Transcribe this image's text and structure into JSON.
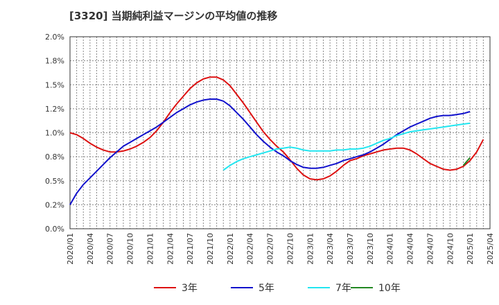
{
  "chart_data": {
    "type": "line",
    "title": "[3320]  当期純利益マージンの平均値の推移",
    "ylim": [
      0.0,
      0.02
    ],
    "yticks": [
      "2.0%",
      "1.8%",
      "1.5%",
      "1.2%",
      "1.0%",
      "0.8%",
      "0.5%",
      "0.2%",
      "0.0%"
    ],
    "x_start": "2020-01",
    "x_end": "2025-04",
    "xticks": [
      "2020/01",
      "2020/04",
      "2020/07",
      "2020/10",
      "2021/01",
      "2021/04",
      "2021/07",
      "2021/10",
      "2022/01",
      "2022/04",
      "2022/07",
      "2022/10",
      "2023/01",
      "2023/04",
      "2023/07",
      "2023/10",
      "2024/01",
      "2024/04",
      "2024/07",
      "2024/10",
      "2025/01",
      "2025/04"
    ],
    "grid": true,
    "legend_position": "bottom",
    "series": [
      {
        "name": "3年",
        "color": "#dd1111",
        "start": "2020-01",
        "values": [
          0.01,
          0.0098,
          0.0094,
          0.0089,
          0.0085,
          0.0082,
          0.008,
          0.008,
          0.0081,
          0.0083,
          0.0086,
          0.009,
          0.0095,
          0.0102,
          0.0111,
          0.0121,
          0.013,
          0.0138,
          0.0146,
          0.0152,
          0.0156,
          0.0158,
          0.0158,
          0.0155,
          0.0149,
          0.014,
          0.0131,
          0.0121,
          0.0111,
          0.0101,
          0.0093,
          0.0086,
          0.008,
          0.0072,
          0.0063,
          0.0056,
          0.0052,
          0.0051,
          0.0052,
          0.0055,
          0.006,
          0.0066,
          0.0071,
          0.0073,
          0.0076,
          0.0078,
          0.008,
          0.0082,
          0.0083,
          0.0084,
          0.0084,
          0.0082,
          0.0078,
          0.0073,
          0.0068,
          0.0065,
          0.0062,
          0.0061,
          0.0062,
          0.0065,
          0.0071,
          0.008,
          0.0093
        ]
      },
      {
        "name": "5年",
        "color": "#1111cc",
        "start": "2020-01",
        "values": [
          0.0025,
          0.0037,
          0.0046,
          0.0053,
          0.006,
          0.0067,
          0.0074,
          0.008,
          0.0086,
          0.009,
          0.0094,
          0.0098,
          0.0102,
          0.0106,
          0.0111,
          0.0116,
          0.0121,
          0.0125,
          0.0129,
          0.0132,
          0.0134,
          0.0135,
          0.0135,
          0.0133,
          0.0128,
          0.0121,
          0.0114,
          0.0106,
          0.0098,
          0.0091,
          0.0085,
          0.008,
          0.0076,
          0.0071,
          0.0067,
          0.0064,
          0.0063,
          0.0063,
          0.0064,
          0.0066,
          0.0068,
          0.0071,
          0.0073,
          0.0075,
          0.0077,
          0.008,
          0.0084,
          0.0088,
          0.0093,
          0.0098,
          0.0102,
          0.0106,
          0.0109,
          0.0112,
          0.0115,
          0.0117,
          0.0118,
          0.0118,
          0.0119,
          0.012,
          0.0122
        ]
      },
      {
        "name": "7年",
        "color": "#22e6f0",
        "start": "2021-12",
        "values": [
          0.0061,
          0.0066,
          0.007,
          0.0073,
          0.0075,
          0.0077,
          0.0079,
          0.0081,
          0.0083,
          0.0084,
          0.0085,
          0.0084,
          0.0082,
          0.0081,
          0.0081,
          0.0081,
          0.0081,
          0.0082,
          0.0082,
          0.0083,
          0.0083,
          0.0084,
          0.0086,
          0.0089,
          0.0092,
          0.0094,
          0.0097,
          0.0099,
          0.0101,
          0.0102,
          0.0103,
          0.0104,
          0.0105,
          0.0106,
          0.0107,
          0.0108,
          0.0109,
          0.011
        ]
      },
      {
        "name": "10年",
        "color": "#228822",
        "start": "2024-12",
        "values": [
          0.0066,
          0.0074
        ]
      }
    ]
  }
}
